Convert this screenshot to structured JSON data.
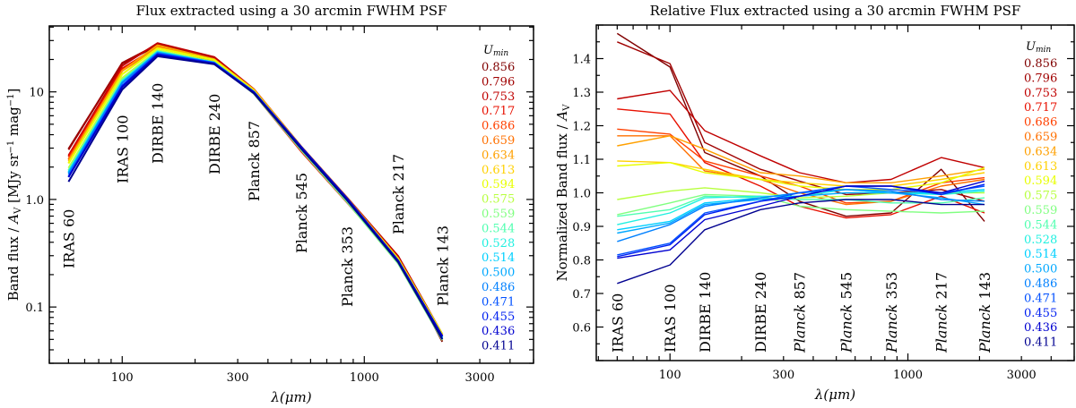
{
  "legend": {
    "title": "U",
    "title_sub": "min",
    "entries": [
      "0.856",
      "0.796",
      "0.753",
      "0.717",
      "0.686",
      "0.659",
      "0.634",
      "0.613",
      "0.594",
      "0.575",
      "0.559",
      "0.544",
      "0.528",
      "0.514",
      "0.500",
      "0.486",
      "0.471",
      "0.455",
      "0.436",
      "0.411"
    ],
    "colors": [
      "#800000",
      "#a00000",
      "#c00000",
      "#e81000",
      "#ff4000",
      "#ff7000",
      "#ffa000",
      "#ffd000",
      "#e8ff00",
      "#b8ff40",
      "#80ff80",
      "#50ffb0",
      "#20f0e0",
      "#00d0ff",
      "#00a8ff",
      "#0080ff",
      "#0050ff",
      "#0020f0",
      "#0000d0",
      "#000090"
    ]
  },
  "chart_data": [
    {
      "type": "line",
      "title": "Flux extracted using a 30 arcmin FWHM PSF",
      "xlabel": "λ(μm)",
      "ylabel": "Band flux / A_V [MJy sr^-1 mag^-1]",
      "ylabel_parts": {
        "a": "Band flux / ",
        "b": "A",
        "b_sub": "V",
        "c": " [MJy sr",
        "c_sup": "−1",
        "d": " mag",
        "d_sup": "−1",
        "e": "]"
      },
      "xscale": "log",
      "yscale": "log",
      "xlim": [
        50,
        5000
      ],
      "ylim": [
        0.03,
        41
      ],
      "xticks": [
        100,
        300,
        1000,
        3000
      ],
      "xtick_labels": [
        "100",
        "300",
        "1000",
        "3000"
      ],
      "yticks": [
        0.1,
        1.0,
        10
      ],
      "ytick_labels": [
        "0.1",
        "1.0",
        "10"
      ],
      "x": [
        60,
        100,
        140,
        240,
        350,
        550,
        850,
        1380,
        2100
      ],
      "band_labels": [
        "IRAS 60",
        "IRAS 100",
        "DIRBE 140",
        "DIRBE 240",
        "Planck 857",
        "Planck 545",
        "Planck 353",
        "Planck 217",
        "Planck 143"
      ],
      "legend_placement": "right",
      "grid": false,
      "series": [
        {
          "name": "0.856",
          "values": [
            2.95,
            18.4,
            26.9,
            20.0,
            9.75,
            2.79,
            0.94,
            0.289,
            0.0476
          ]
        },
        {
          "name": "0.796",
          "values": [
            2.9,
            18.6,
            27.6,
            20.3,
            10.35,
            2.99,
            1.0,
            0.273,
            0.0507
          ]
        },
        {
          "name": "0.753",
          "values": [
            2.56,
            17.5,
            28.4,
            21.1,
            10.6,
            3.09,
            1.04,
            0.298,
            0.0559
          ]
        },
        {
          "name": "0.717",
          "values": [
            2.5,
            16.5,
            26.2,
            19.4,
            9.6,
            2.78,
            0.935,
            0.267,
            0.0489
          ]
        },
        {
          "name": "0.686",
          "values": [
            2.38,
            15.7,
            26.3,
            20.0,
            10.2,
            2.91,
            0.975,
            0.278,
            0.0543
          ]
        },
        {
          "name": "0.659",
          "values": [
            2.34,
            15.7,
            25.6,
            19.8,
            10.0,
            2.9,
            0.975,
            0.275,
            0.0541
          ]
        },
        {
          "name": "0.634",
          "values": [
            2.28,
            15.7,
            27.1,
            20.1,
            10.5,
            3.09,
            1.03,
            0.284,
            0.0556
          ]
        },
        {
          "name": "0.613",
          "values": [
            2.19,
            14.6,
            25.7,
            19.8,
            10.3,
            3.06,
            1.02,
            0.281,
            0.0551
          ]
        },
        {
          "name": "0.594",
          "values": [
            2.16,
            14.6,
            25.4,
            19.8,
            10.2,
            3.03,
            1.01,
            0.278,
            0.0559
          ]
        },
        {
          "name": "0.575",
          "values": [
            1.96,
            13.5,
            24.4,
            19.0,
            9.85,
            2.97,
            1.0,
            0.27,
            0.052
          ]
        },
        {
          "name": "0.559",
          "values": [
            1.87,
            13.0,
            23.9,
            18.8,
            9.6,
            2.85,
            0.945,
            0.254,
            0.0491
          ]
        },
        {
          "name": "0.544",
          "values": [
            1.86,
            12.7,
            23.8,
            18.7,
            9.8,
            2.94,
            0.97,
            0.262,
            0.0512
          ]
        },
        {
          "name": "0.528",
          "values": [
            1.81,
            12.6,
            23.6,
            18.8,
            9.9,
            3.03,
            1.0,
            0.269,
            0.0523
          ]
        },
        {
          "name": "0.514",
          "values": [
            1.78,
            12.3,
            23.3,
            18.7,
            10.0,
            3.03,
            1.0,
            0.27,
            0.0525
          ]
        },
        {
          "name": "0.500",
          "values": [
            1.76,
            12.2,
            23.2,
            18.6,
            9.9,
            3.0,
            1.0,
            0.266,
            0.0502
          ]
        },
        {
          "name": "0.486",
          "values": [
            1.71,
            12.1,
            23.0,
            18.7,
            10.0,
            3.03,
            1.005,
            0.265,
            0.0507
          ]
        },
        {
          "name": "0.471",
          "values": [
            1.63,
            11.4,
            22.6,
            18.5,
            10.0,
            3.06,
            1.01,
            0.27,
            0.053
          ]
        },
        {
          "name": "0.455",
          "values": [
            1.62,
            11.3,
            22.4,
            18.5,
            9.9,
            3.06,
            1.02,
            0.269,
            0.0533
          ]
        },
        {
          "name": "0.436",
          "values": [
            1.61,
            11.1,
            22.1,
            18.2,
            9.9,
            3.06,
            1.02,
            0.27,
            0.0538
          ]
        },
        {
          "name": "0.411",
          "values": [
            1.46,
            10.5,
            21.4,
            18.1,
            9.7,
            2.94,
            0.98,
            0.261,
            0.0502
          ]
        }
      ]
    },
    {
      "type": "line",
      "title": "Relative Flux extracted using a 30 arcmin FWHM PSF",
      "xlabel": "λ(μm)",
      "ylabel": "Normalized Band flux / A_V",
      "ylabel_parts": {
        "a": "Normalized Band flux / ",
        "b": "A",
        "b_sub": "V"
      },
      "xscale": "log",
      "yscale": "linear",
      "xlim": [
        49,
        5000
      ],
      "ylim": [
        0.5,
        1.5
      ],
      "xticks": [
        100,
        300,
        1000,
        3000
      ],
      "xtick_labels": [
        "100",
        "300",
        "1000",
        "3000"
      ],
      "yticks": [
        0.6,
        0.7,
        0.8,
        0.9,
        1.0,
        1.1,
        1.2,
        1.3,
        1.4
      ],
      "ytick_labels": [
        "0.6",
        "0.7",
        "0.8",
        "0.9",
        "1.0",
        "1.1",
        "1.2",
        "1.3",
        "1.4"
      ],
      "x": [
        60,
        100,
        140,
        240,
        350,
        550,
        850,
        1380,
        2100
      ],
      "band_labels": [
        "IRAS 60",
        "IRAS 100",
        "DIRBE 140",
        "DIRBE 240",
        "Planck 857",
        "Planck 545",
        "Planck 353",
        "Planck 217",
        "Planck 143"
      ],
      "legend_placement": "right",
      "grid": false,
      "series": [
        {
          "name": "0.856",
          "values": [
            1.475,
            1.375,
            1.12,
            1.05,
            0.975,
            0.93,
            0.94,
            1.07,
            0.915
          ]
        },
        {
          "name": "0.796",
          "values": [
            1.45,
            1.385,
            1.15,
            1.07,
            1.035,
            0.995,
            1.0,
            1.01,
            0.975
          ]
        },
        {
          "name": "0.753",
          "values": [
            1.28,
            1.305,
            1.185,
            1.11,
            1.06,
            1.03,
            1.04,
            1.105,
            1.075
          ]
        },
        {
          "name": "0.717",
          "values": [
            1.25,
            1.235,
            1.09,
            1.02,
            0.96,
            0.925,
            0.935,
            0.99,
            0.94
          ]
        },
        {
          "name": "0.686",
          "values": [
            1.19,
            1.175,
            1.095,
            1.05,
            1.02,
            0.97,
            0.975,
            1.03,
            1.045
          ]
        },
        {
          "name": "0.659",
          "values": [
            1.17,
            1.17,
            1.065,
            1.04,
            1.0,
            0.965,
            0.975,
            1.02,
            1.04
          ]
        },
        {
          "name": "0.634",
          "values": [
            1.14,
            1.17,
            1.13,
            1.06,
            1.05,
            1.03,
            1.03,
            1.05,
            1.07
          ]
        },
        {
          "name": "0.613",
          "values": [
            1.095,
            1.09,
            1.07,
            1.04,
            1.03,
            1.02,
            1.02,
            1.04,
            1.06
          ]
        },
        {
          "name": "0.594",
          "values": [
            1.08,
            1.09,
            1.06,
            1.04,
            1.02,
            1.01,
            1.01,
            1.03,
            1.075
          ]
        },
        {
          "name": "0.575",
          "values": [
            0.98,
            1.005,
            1.015,
            1.0,
            0.985,
            0.99,
            1.0,
            1.0,
            1.0
          ]
        },
        {
          "name": "0.559",
          "values": [
            0.935,
            0.97,
            0.995,
            0.99,
            0.96,
            0.95,
            0.945,
            0.94,
            0.945
          ]
        },
        {
          "name": "0.544",
          "values": [
            0.93,
            0.95,
            0.99,
            0.985,
            0.98,
            0.98,
            0.97,
            0.97,
            0.985
          ]
        },
        {
          "name": "0.528",
          "values": [
            0.905,
            0.94,
            0.985,
            0.99,
            0.99,
            1.01,
            1.0,
            0.995,
            1.005
          ]
        },
        {
          "name": "0.514",
          "values": [
            0.89,
            0.915,
            0.97,
            0.985,
            1.0,
            1.01,
            1.0,
            1.0,
            1.01
          ]
        },
        {
          "name": "0.500",
          "values": [
            0.88,
            0.91,
            0.965,
            0.98,
            0.99,
            1.0,
            1.0,
            0.985,
            0.965
          ]
        },
        {
          "name": "0.486",
          "values": [
            0.855,
            0.905,
            0.96,
            0.985,
            1.0,
            1.01,
            1.005,
            0.98,
            0.975
          ]
        },
        {
          "name": "0.471",
          "values": [
            0.815,
            0.85,
            0.94,
            0.975,
            1.0,
            1.02,
            1.01,
            1.0,
            1.02
          ]
        },
        {
          "name": "0.455",
          "values": [
            0.81,
            0.845,
            0.935,
            0.975,
            0.99,
            1.02,
            1.02,
            0.995,
            1.025
          ]
        },
        {
          "name": "0.436",
          "values": [
            0.805,
            0.83,
            0.92,
            0.96,
            0.99,
            1.02,
            1.02,
            1.0,
            1.035
          ]
        },
        {
          "name": "0.411",
          "values": [
            0.73,
            0.785,
            0.89,
            0.95,
            0.97,
            0.98,
            0.98,
            0.965,
            0.965
          ]
        }
      ]
    }
  ]
}
